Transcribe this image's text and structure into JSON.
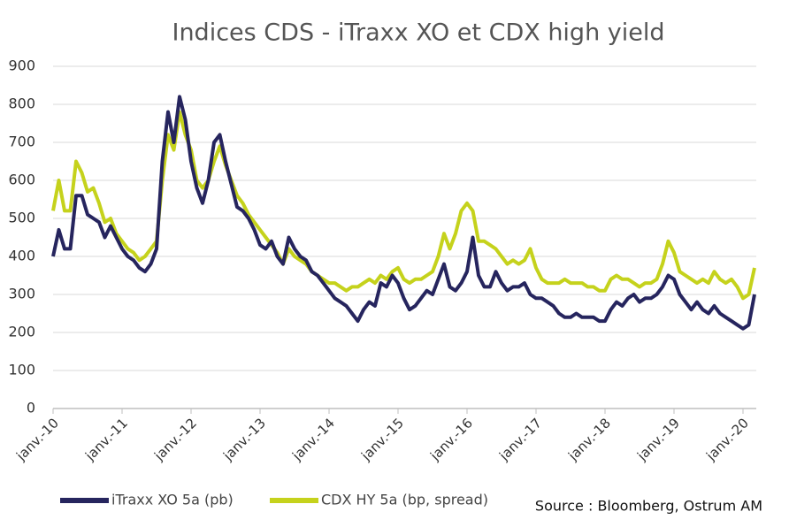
{
  "chart_data": {
    "type": "line",
    "title": "Indices CDS - iTraxx XO et CDX high yield",
    "source": "Source : Bloomberg, Ostrum AM",
    "categories": [
      "janv.-10",
      null,
      null,
      null,
      null,
      null,
      null,
      null,
      null,
      null,
      null,
      null,
      "janv.-11",
      null,
      null,
      null,
      null,
      null,
      null,
      null,
      null,
      null,
      null,
      null,
      "janv.-12",
      null,
      null,
      null,
      null,
      null,
      null,
      null,
      null,
      null,
      null,
      null,
      "janv.-13",
      null,
      null,
      null,
      null,
      null,
      null,
      null,
      null,
      null,
      null,
      null,
      "janv.-14",
      null,
      null,
      null,
      null,
      null,
      null,
      null,
      null,
      null,
      null,
      null,
      "janv.-15",
      null,
      null,
      null,
      null,
      null,
      null,
      null,
      null,
      null,
      null,
      null,
      "janv.-16",
      null,
      null,
      null,
      null,
      null,
      null,
      null,
      null,
      null,
      null,
      null,
      "janv.-17",
      null,
      null,
      null,
      null,
      null,
      null,
      null,
      null,
      null,
      null,
      null,
      "janv.-18",
      null,
      null,
      null,
      null,
      null,
      null,
      null,
      null,
      null,
      null,
      null,
      "janv.-19",
      null,
      null,
      null,
      null,
      null,
      null,
      null,
      null,
      null,
      null,
      null,
      "janv.-20",
      null,
      null
    ],
    "series": [
      {
        "name": "iTraxx XO 5a (pb)",
        "color": "#26255e",
        "values": [
          400,
          470,
          420,
          420,
          560,
          560,
          510,
          500,
          490,
          450,
          480,
          450,
          420,
          400,
          390,
          370,
          360,
          380,
          420,
          650,
          780,
          700,
          820,
          760,
          650,
          580,
          540,
          600,
          700,
          720,
          650,
          590,
          530,
          520,
          500,
          470,
          430,
          420,
          440,
          400,
          380,
          450,
          420,
          400,
          390,
          360,
          350,
          330,
          310,
          290,
          280,
          270,
          250,
          230,
          260,
          280,
          270,
          330,
          320,
          350,
          330,
          290,
          260,
          270,
          290,
          310,
          300,
          340,
          380,
          320,
          310,
          330,
          360,
          450,
          350,
          320,
          320,
          360,
          330,
          310,
          320,
          320,
          330,
          300,
          290,
          290,
          280,
          270,
          250,
          240,
          240,
          250,
          240,
          240,
          240,
          230,
          230,
          260,
          280,
          270,
          290,
          300,
          280,
          290,
          290,
          300,
          320,
          350,
          340,
          300,
          280,
          260,
          280,
          260,
          250,
          270,
          250,
          240,
          230,
          220,
          210,
          220,
          300
        ]
      },
      {
        "name": "CDX HY 5a (bp, spread)",
        "color": "#c5d21c",
        "values": [
          520,
          600,
          520,
          520,
          650,
          620,
          570,
          580,
          540,
          490,
          500,
          460,
          440,
          420,
          410,
          390,
          400,
          420,
          440,
          600,
          720,
          680,
          780,
          720,
          680,
          600,
          580,
          600,
          650,
          690,
          640,
          600,
          560,
          540,
          510,
          490,
          470,
          450,
          430,
          410,
          380,
          420,
          400,
          390,
          380,
          360,
          350,
          340,
          330,
          330,
          320,
          310,
          320,
          320,
          330,
          340,
          330,
          350,
          340,
          360,
          370,
          340,
          330,
          340,
          340,
          350,
          360,
          400,
          460,
          420,
          460,
          520,
          540,
          520,
          440,
          440,
          430,
          420,
          400,
          380,
          390,
          380,
          390,
          420,
          370,
          340,
          330,
          330,
          330,
          340,
          330,
          330,
          330,
          320,
          320,
          310,
          310,
          340,
          350,
          340,
          340,
          330,
          320,
          330,
          330,
          340,
          380,
          440,
          410,
          360,
          350,
          340,
          330,
          340,
          330,
          360,
          340,
          330,
          340,
          320,
          290,
          300,
          370
        ]
      }
    ],
    "ylim": [
      0,
      900
    ],
    "yticks": [
      0,
      100,
      200,
      300,
      400,
      500,
      600,
      700,
      800,
      900
    ],
    "grid": true
  }
}
